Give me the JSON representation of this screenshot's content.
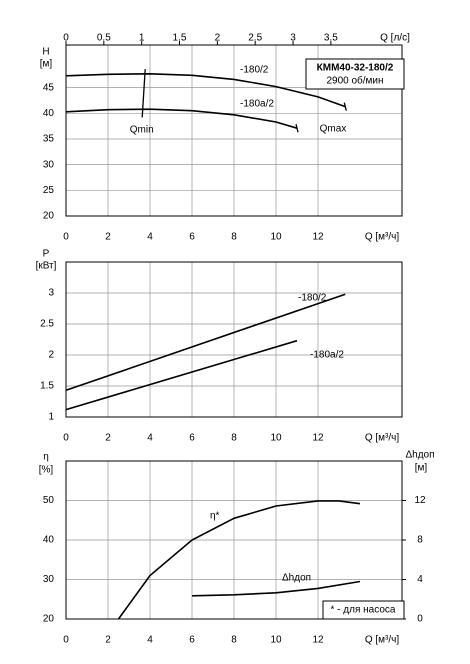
{
  "chart_data": [
    {
      "type": "line",
      "title": "КММ40-32-180/2",
      "subtitle": "2900 об/мин",
      "y_label": "H",
      "y_unit": "[м]",
      "x_label": "Q [м³/ч]",
      "x2_label": "Q [л/с]",
      "xlim": [
        0,
        16
      ],
      "xticks": [
        0,
        2,
        4,
        6,
        8,
        10,
        12
      ],
      "x2lim": [
        0,
        4.44
      ],
      "x2ticks": [
        0,
        0.5,
        1,
        1.5,
        2,
        2.5,
        3,
        3.5
      ],
      "ylim": [
        20,
        53.3
      ],
      "yticks": [
        20,
        25,
        30,
        35,
        40,
        45
      ],
      "grid": true,
      "series": [
        {
          "name": "-180/2",
          "color": "#000000",
          "x": [
            0,
            2,
            4,
            6,
            8,
            10,
            12,
            13.3
          ],
          "values": [
            47.3,
            47.6,
            47.7,
            47.4,
            46.6,
            45.2,
            43.2,
            41.3
          ]
        },
        {
          "name": "-180a/2",
          "color": "#000000",
          "x": [
            0,
            2,
            4,
            6,
            8,
            10,
            11
          ],
          "values": [
            40.3,
            40.7,
            40.8,
            40.5,
            39.7,
            38.3,
            37.1
          ]
        }
      ],
      "annotations": [
        {
          "text": "Qmin",
          "x": 3.7
        },
        {
          "text": "Qmax"
        }
      ]
    },
    {
      "type": "line",
      "y_label": "P",
      "y_unit": "[кВт]",
      "x_label": "Q [м³/ч]",
      "xlim": [
        0,
        16
      ],
      "xticks": [
        0,
        2,
        4,
        6,
        8,
        10,
        12
      ],
      "ylim": [
        1,
        3.5
      ],
      "yticks": [
        1,
        1.5,
        2,
        2.5,
        3
      ],
      "grid": true,
      "series": [
        {
          "name": "-180/2",
          "color": "#000000",
          "x": [
            0,
            13.3
          ],
          "values": [
            1.43,
            2.98
          ]
        },
        {
          "name": "-180a/2",
          "color": "#000000",
          "x": [
            0,
            11
          ],
          "values": [
            1.12,
            2.23
          ]
        }
      ]
    },
    {
      "type": "line",
      "y_label": "η",
      "y_unit": "[%]",
      "y2_label": "Δhдоп",
      "y2_unit": "[м]",
      "x_label": "Q [м³/ч]",
      "xlim": [
        0,
        16
      ],
      "xticks": [
        0,
        2,
        4,
        6,
        8,
        10,
        12
      ],
      "ylim": [
        20,
        60
      ],
      "yticks": [
        20,
        30,
        40,
        50
      ],
      "y2lim": [
        0,
        16
      ],
      "y2ticks": [
        0,
        4,
        8,
        12
      ],
      "grid": true,
      "note": "* - для насоса",
      "series": [
        {
          "name": "η*",
          "color": "#000000",
          "x": [
            2.5,
            4,
            6,
            8,
            10,
            12,
            13,
            14
          ],
          "values": [
            20,
            31,
            40,
            45.5,
            48.6,
            49.9,
            49.9,
            49.2
          ]
        },
        {
          "name": "Δhдоп",
          "color": "#000000",
          "axis": "y2",
          "x": [
            6,
            8,
            10,
            12,
            14
          ],
          "values": [
            2.35,
            2.45,
            2.65,
            3.1,
            3.8
          ]
        }
      ]
    }
  ]
}
